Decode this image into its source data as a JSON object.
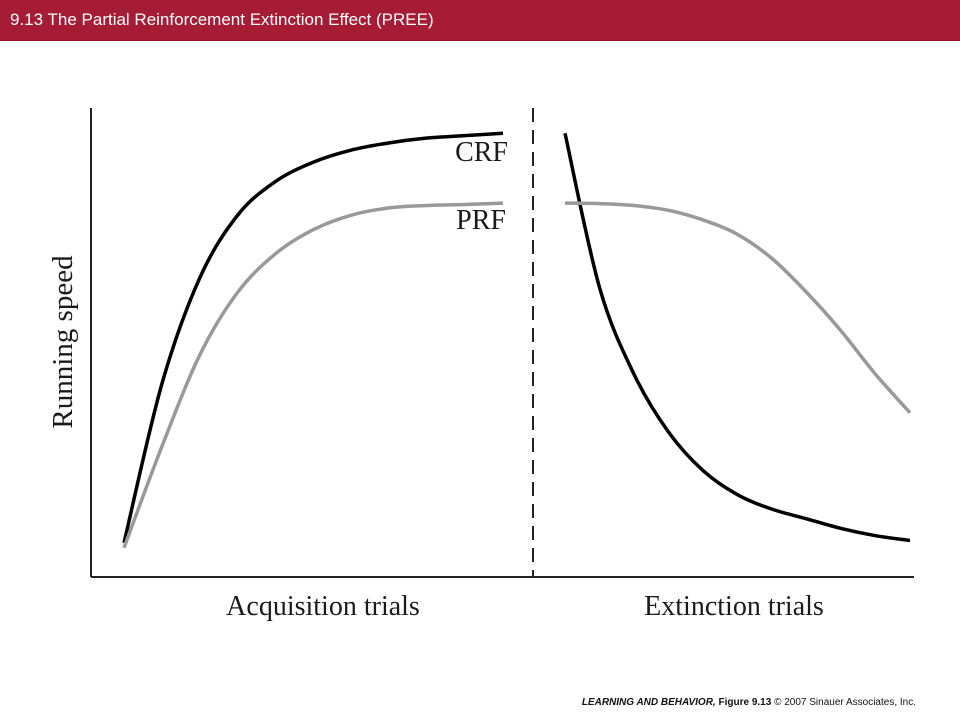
{
  "header": {
    "title": "9.13  The Partial Reinforcement Extinction Effect (PREE)",
    "background_color": "#a61c34"
  },
  "chart_data": {
    "type": "line",
    "ylabel": "Running speed",
    "panels": [
      {
        "xlabel": "Acquisition trials"
      },
      {
        "xlabel": "Extinction trials"
      }
    ],
    "series": [
      {
        "name": "CRF",
        "color": "#000000",
        "acquisition": {
          "x": [
            0,
            0.1,
            0.2,
            0.3,
            0.4,
            0.5,
            0.6,
            0.7,
            0.8,
            0.9,
            1.0
          ],
          "y": [
            0.05,
            0.38,
            0.6,
            0.73,
            0.8,
            0.84,
            0.865,
            0.88,
            0.89,
            0.895,
            0.9
          ]
        },
        "extinction": {
          "x": [
            0,
            0.1,
            0.2,
            0.3,
            0.4,
            0.5,
            0.6,
            0.7,
            0.8,
            0.9,
            1.0
          ],
          "y": [
            0.9,
            0.58,
            0.4,
            0.28,
            0.2,
            0.15,
            0.12,
            0.1,
            0.08,
            0.065,
            0.055
          ]
        }
      },
      {
        "name": "PRF",
        "color": "#999999",
        "acquisition": {
          "x": [
            0,
            0.1,
            0.2,
            0.3,
            0.4,
            0.5,
            0.6,
            0.7,
            0.8,
            0.9,
            1.0
          ],
          "y": [
            0.04,
            0.25,
            0.44,
            0.57,
            0.65,
            0.7,
            0.73,
            0.745,
            0.75,
            0.752,
            0.755
          ]
        },
        "extinction": {
          "x": [
            0,
            0.1,
            0.2,
            0.3,
            0.4,
            0.5,
            0.6,
            0.7,
            0.8,
            0.9,
            1.0
          ],
          "y": [
            0.755,
            0.754,
            0.75,
            0.74,
            0.72,
            0.69,
            0.64,
            0.57,
            0.49,
            0.4,
            0.32
          ]
        }
      }
    ],
    "divider": "dashed vertical line between acquisition and extinction",
    "ylim": [
      0,
      1
    ],
    "grid": false,
    "legend": "inline labels above curves (CRF, PRF)"
  },
  "footer": {
    "book": "LEARNING AND BEHAVIOR,",
    "figure": "Figure 9.13",
    "copyright": "© 2007 Sinauer Associates, Inc."
  }
}
